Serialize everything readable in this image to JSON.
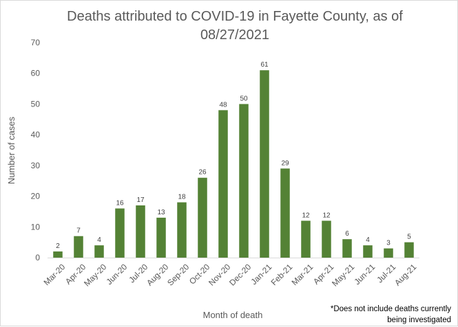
{
  "chart_data": {
    "type": "bar",
    "title": "Deaths attributed to COVID-19 in Fayette County, as of 08/27/2021",
    "xlabel": "Month of death",
    "ylabel": "Number of cases",
    "categories": [
      "Mar-20",
      "Apr-20",
      "May-20",
      "Jun-20",
      "Jul-20",
      "Aug-20",
      "Sep-20",
      "Oct-20",
      "Nov-20",
      "Dec-20",
      "Jan-21",
      "Feb-21",
      "Mar-21",
      "Apr-21",
      "May-21",
      "Jun-21",
      "Jul-21",
      "Aug-21"
    ],
    "values": [
      2,
      7,
      4,
      16,
      17,
      13,
      18,
      26,
      48,
      50,
      61,
      29,
      12,
      12,
      6,
      4,
      3,
      5
    ],
    "ylim": [
      0,
      70
    ],
    "yticks": [
      0,
      10,
      20,
      30,
      40,
      50,
      60,
      70
    ],
    "grid": false,
    "legend": "none",
    "data_labels": true,
    "bar_color": "#548235",
    "footnote": "*Does not include deaths currently being investigated"
  }
}
